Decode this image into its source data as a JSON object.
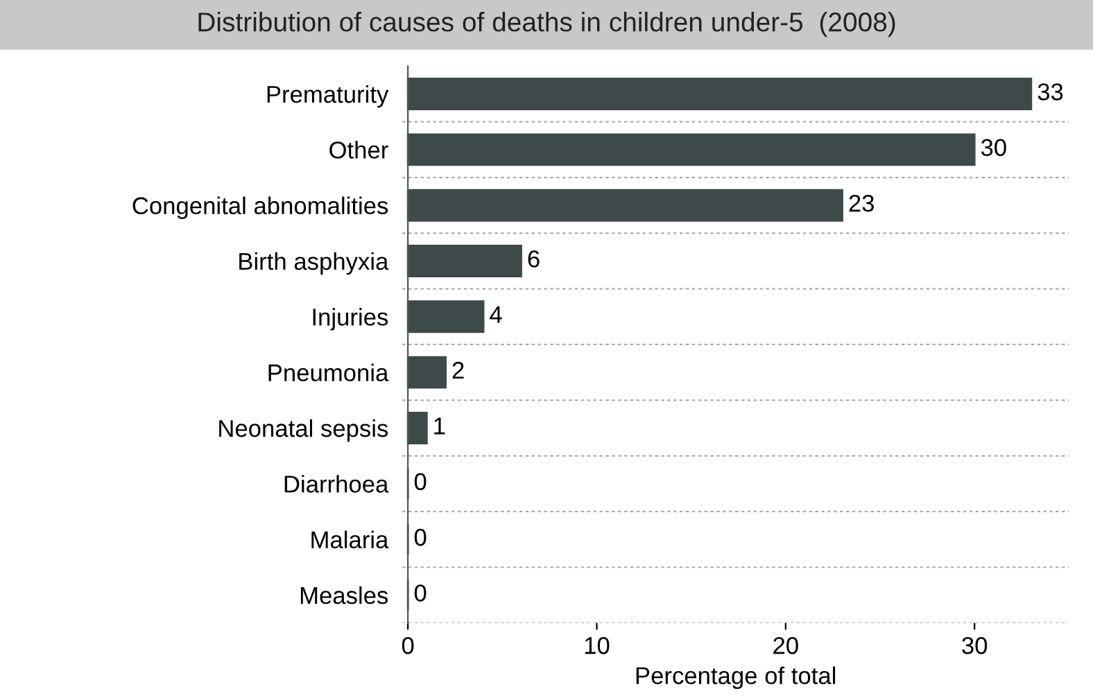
{
  "chart_data": {
    "type": "bar",
    "orientation": "horizontal",
    "title": "Distribution of causes of deaths in children under-5  (2008)",
    "xlabel": "Percentage of total",
    "categories": [
      "Prematurity",
      "Other",
      "Congenital abnomalities",
      "Birth asphyxia",
      "Injuries",
      "Pneumonia",
      "Neonatal sepsis",
      "Diarrhoea",
      "Malaria",
      "Measles"
    ],
    "values": [
      33,
      30,
      23,
      6,
      4,
      2,
      1,
      0,
      0,
      0
    ],
    "color": "#3e4a4a",
    "xlim": [
      -0.3,
      35
    ],
    "xticks": [
      0,
      10,
      20,
      30
    ],
    "data_labels": true,
    "grid": "y",
    "legend": false
  }
}
